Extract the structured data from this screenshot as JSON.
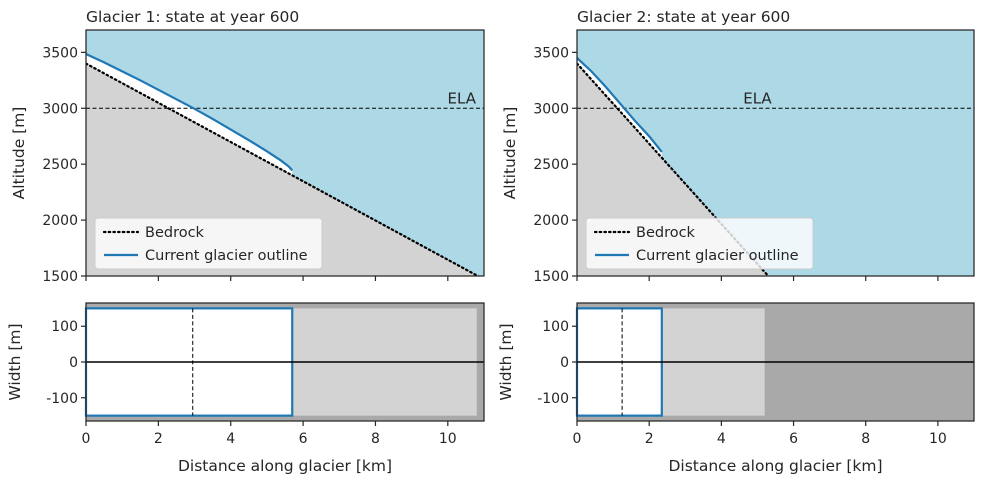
{
  "chart_data": [
    {
      "type": "line",
      "title": "Glacier 1: state at year 600",
      "ylabel": "Altitude [m]",
      "xlim": [
        0,
        11
      ],
      "ylim": [
        1500,
        3700
      ],
      "yticks": [
        1500,
        2000,
        2500,
        3000,
        3500
      ],
      "ela": {
        "label": "ELA",
        "value": 3000
      },
      "sky_color": "#add8e6",
      "ground_color": "#d3d3d3",
      "bedrock": {
        "name": "Bedrock",
        "x": [
          0,
          11
        ],
        "y": [
          3400,
          1470
        ]
      },
      "glacier": {
        "name": "Current glacier outline",
        "x": [
          0,
          0.5,
          1,
          1.5,
          2,
          2.5,
          3,
          3.5,
          4,
          4.5,
          5,
          5.4,
          5.6,
          5.7
        ],
        "y": [
          3485,
          3410,
          3330,
          3250,
          3165,
          3080,
          2995,
          2905,
          2810,
          2715,
          2615,
          2530,
          2480,
          2445
        ]
      },
      "legend": [
        "Bedrock",
        "Current glacier outline"
      ],
      "legend_position": "lower-left",
      "ice_color": "#ffffff",
      "outline_color": "#1f77b4"
    },
    {
      "type": "line",
      "title": "Glacier 2: state at year 600",
      "ylabel": "Altitude [m]",
      "xlim": [
        0,
        11
      ],
      "ylim": [
        1500,
        3700
      ],
      "yticks": [
        1500,
        2000,
        2500,
        3000,
        3500
      ],
      "ela": {
        "label": "ELA",
        "value": 3000
      },
      "sky_color": "#add8e6",
      "ground_color": "#d3d3d3",
      "bedrock": {
        "name": "Bedrock",
        "x": [
          0,
          5.3
        ],
        "y": [
          3400,
          1500
        ]
      },
      "glacier": {
        "name": "Current glacier outline",
        "x": [
          0,
          0.4,
          0.8,
          1.2,
          1.6,
          2,
          2.2,
          2.35
        ],
        "y": [
          3450,
          3330,
          3190,
          3040,
          2890,
          2750,
          2670,
          2610
        ]
      },
      "legend": [
        "Bedrock",
        "Current glacier outline"
      ],
      "legend_position": "lower-left",
      "ice_color": "#ffffff",
      "outline_color": "#1f77b4"
    },
    {
      "type": "area",
      "xlabel": "Distance along glacier [km]",
      "ylabel": "Width [m]",
      "xlim": [
        0,
        11
      ],
      "ylim": [
        -165,
        165
      ],
      "xticks": [
        0,
        2,
        4,
        6,
        8,
        10
      ],
      "yticks": [
        -100,
        0,
        100
      ],
      "half_width": 150,
      "glacier_length": 5.7,
      "ela_distance": 2.95,
      "domain_end": 10.8,
      "background_color": "#a9a9a9",
      "domain_color": "#d3d3d3",
      "glacier_fill": "#ffffff",
      "outline_color": "#1f77b4"
    },
    {
      "type": "area",
      "xlabel": "Distance along glacier [km]",
      "ylabel": "Width [m]",
      "xlim": [
        0,
        11
      ],
      "ylim": [
        -165,
        165
      ],
      "xticks": [
        0,
        2,
        4,
        6,
        8,
        10
      ],
      "yticks": [
        -100,
        0,
        100
      ],
      "half_width": 150,
      "glacier_length": 2.35,
      "ela_distance": 1.25,
      "domain_end": 5.2,
      "background_color": "#a9a9a9",
      "domain_color": "#d3d3d3",
      "glacier_fill": "#ffffff",
      "outline_color": "#1f77b4"
    }
  ]
}
